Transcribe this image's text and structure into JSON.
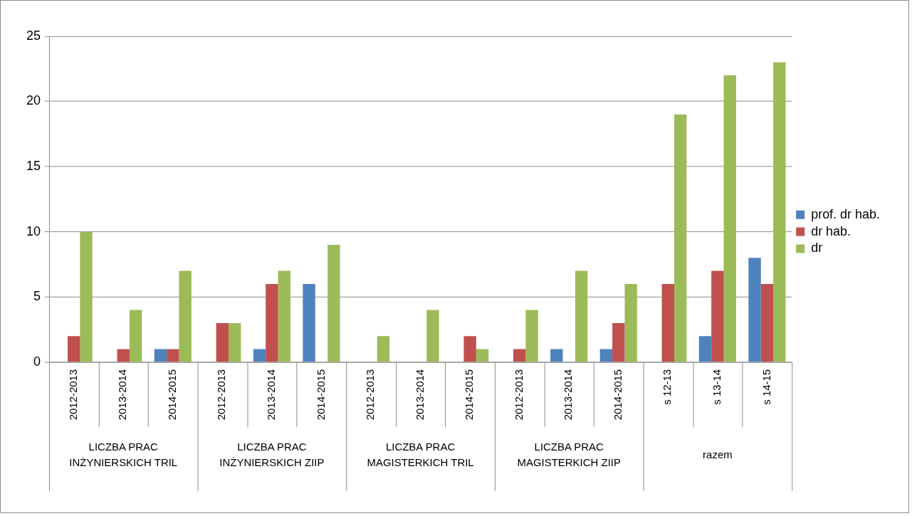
{
  "chart_data": {
    "type": "bar",
    "categories": [
      "2012-2013",
      "2013-2014",
      "2014-2015",
      "2012-2013",
      "2013-2014",
      "2014-2015",
      "2012-2013",
      "2013-2014",
      "2014-2015",
      "2012-2013",
      "2013-2014",
      "2014-2015",
      "s 12-13",
      "s 13-14",
      "s 14-15"
    ],
    "series": [
      {
        "name": "prof. dr hab.",
        "color": "#4f81bd",
        "values": [
          0,
          0,
          1,
          0,
          1,
          6,
          0,
          0,
          0,
          0,
          1,
          1,
          0,
          2,
          8
        ]
      },
      {
        "name": "dr hab.",
        "color": "#c0504d",
        "values": [
          2,
          1,
          1,
          3,
          6,
          0,
          0,
          0,
          2,
          1,
          0,
          3,
          6,
          7,
          6
        ]
      },
      {
        "name": "dr",
        "color": "#9bbb59",
        "values": [
          10,
          4,
          7,
          3,
          7,
          9,
          2,
          4,
          1,
          4,
          7,
          6,
          19,
          22,
          23
        ]
      }
    ],
    "annotations": [
      "LICZBA PRAC INŻYNIERSKICH TRIL",
      "LICZBA PRAC INŻYNIERSKICH ZIIP",
      "LICZBA PRAC MAGISTERKICH TRIL",
      "LICZBA PRAC MAGISTERKICH ZIIP",
      "razem"
    ],
    "ylim": [
      0,
      25
    ],
    "yticks": [
      0,
      5,
      10,
      15,
      20,
      25
    ],
    "grid": "y",
    "legend": "right"
  }
}
